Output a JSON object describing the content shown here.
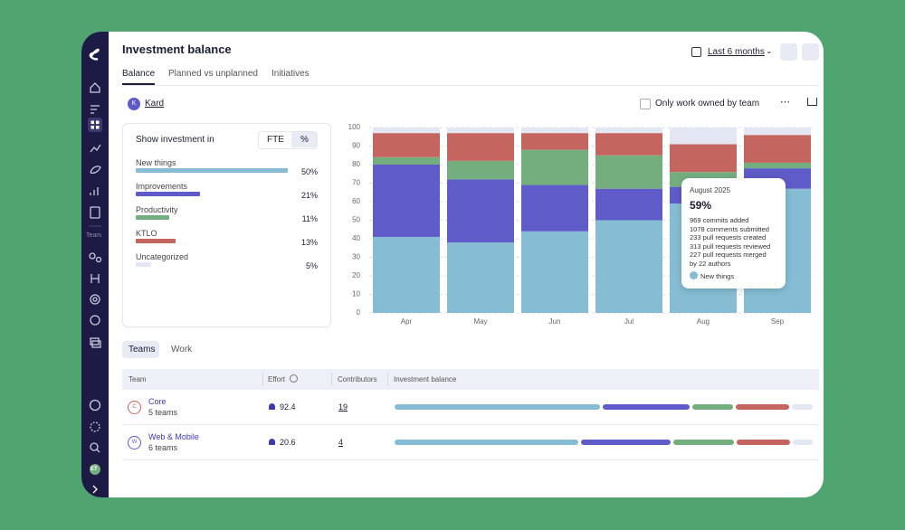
{
  "sidebar": {
    "section_label": "Team",
    "avatar": "ET"
  },
  "header": {
    "title": "Investment balance",
    "date_range": "Last 6 months"
  },
  "tabs": [
    "Balance",
    "Planned vs unplanned",
    "Initiatives"
  ],
  "filter": {
    "avatar": "K",
    "name": "Kard",
    "checkbox_label": "Only work owned by team"
  },
  "investment_panel": {
    "title": "Show investment in",
    "toggle": [
      "FTE",
      "%"
    ],
    "values": [
      50,
      21,
      11,
      13,
      5
    ],
    "value_labels": [
      "50%",
      "21%",
      "11%",
      "13%",
      "5%"
    ]
  },
  "chart_data": {
    "type": "bar",
    "stacked": true,
    "categories": [
      "Apr",
      "May",
      "Jun",
      "Jul",
      "Aug",
      "Sep"
    ],
    "series": [
      {
        "name": "New things",
        "color": "#86bdd4",
        "values": [
          41,
          38,
          44,
          50,
          59,
          67
        ]
      },
      {
        "name": "Improvements",
        "color": "#5f5bc8",
        "values": [
          39,
          34,
          25,
          17,
          9,
          11
        ]
      },
      {
        "name": "Productivity",
        "color": "#74ae7f",
        "values": [
          4,
          10,
          19,
          18,
          8,
          3
        ]
      },
      {
        "name": "KTLO",
        "color": "#c4665f",
        "values": [
          13,
          15,
          9,
          12,
          15,
          15
        ]
      },
      {
        "name": "Uncategorized",
        "color": "#e4e6f4",
        "values": [
          3,
          3,
          3,
          3,
          9,
          4
        ]
      }
    ],
    "ylim": [
      0,
      100
    ],
    "yticks": [
      0,
      10,
      20,
      30,
      40,
      50,
      60,
      70,
      80,
      90,
      100
    ],
    "grid": true
  },
  "tooltip": {
    "title": "August 2025",
    "value": "59%",
    "lines": [
      "969 commits added",
      "1078 comments submitted",
      "233 pull requests created",
      "313 pull requests reviewed",
      "227 pull requests merged",
      "by 22 authors"
    ]
  },
  "table": {
    "tabs": [
      "Teams",
      "Work"
    ],
    "columns": [
      "Team",
      "Effort",
      "Contributors",
      "Investment balance"
    ],
    "rows": [
      {
        "avatar": "C",
        "name": "Core",
        "subtitle": "5 teams",
        "effort": 92.4,
        "contributors": 19,
        "balance": [
          50,
          21,
          10,
          13,
          5
        ]
      },
      {
        "avatar": "W",
        "name": "Web & Mobile",
        "subtitle": "6 teams",
        "effort": 20.6,
        "contributors": 4,
        "balance": [
          45,
          22,
          15,
          13,
          5
        ]
      }
    ]
  }
}
